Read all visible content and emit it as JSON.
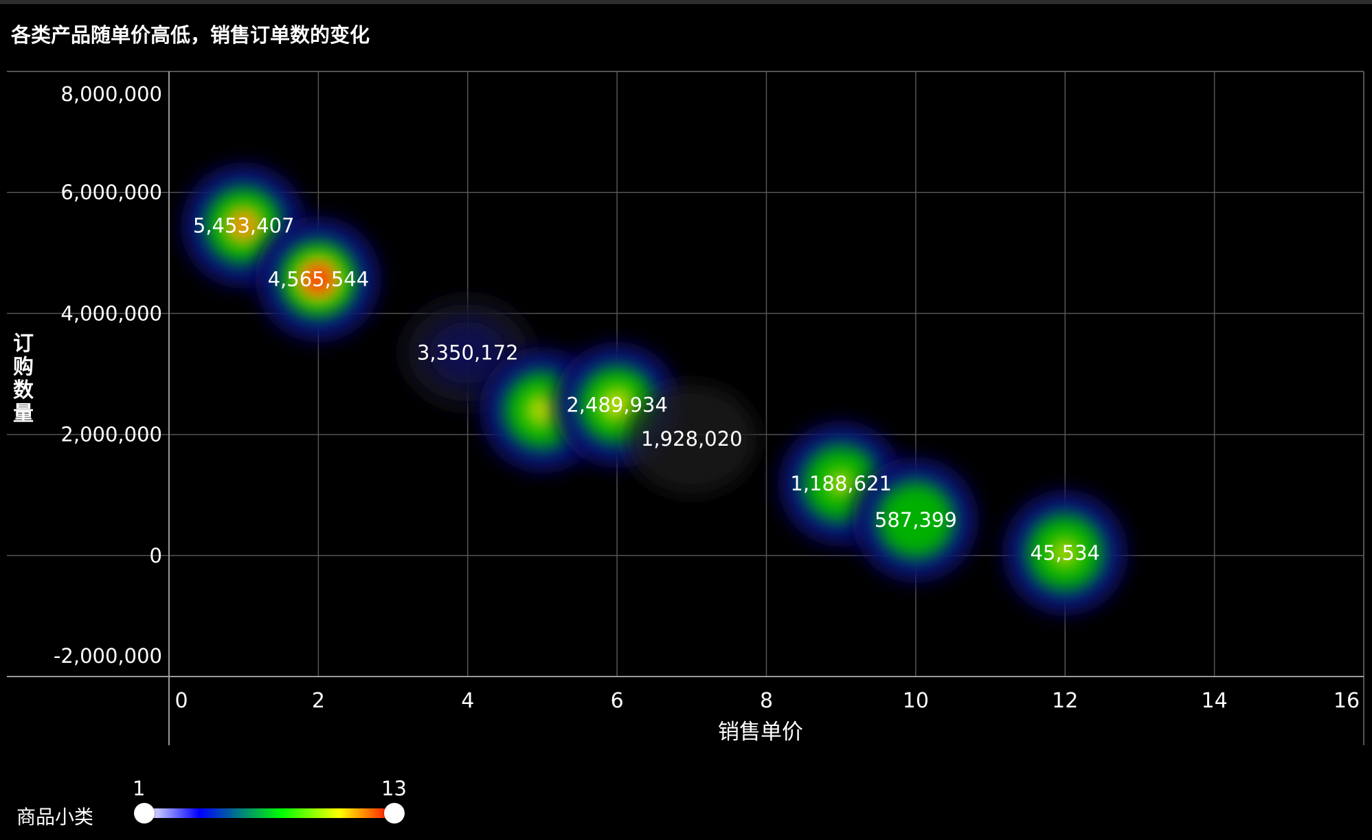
{
  "title": "各类产品随单价高低，销售订单数的变化",
  "colors": {
    "background": "#000000",
    "grid": "#555555",
    "axis": "#9a9a9a",
    "label": "#ffffff"
  },
  "chart_data": {
    "type": "heatmap",
    "title": "各类产品随单价高低，销售订单数的变化",
    "xlabel": "销售单价",
    "ylabel": "订购数量",
    "xlim": [
      0,
      16
    ],
    "ylim": [
      -2000000,
      8000000
    ],
    "x_ticks": [
      0,
      2,
      4,
      6,
      8,
      10,
      12,
      14,
      16
    ],
    "x_tick_labels": [
      "0",
      "2",
      "4",
      "6",
      "8",
      "10",
      "12",
      "14",
      "16"
    ],
    "y_ticks": [
      -2000000,
      0,
      2000000,
      4000000,
      6000000,
      8000000
    ],
    "y_tick_labels": [
      "-2,000,000",
      "0",
      "2,000,000",
      "4,000,000",
      "6,000,000",
      "8,000,000"
    ],
    "grid": true,
    "points": [
      {
        "x": 1,
        "y": 5453407,
        "label": "5,453,407",
        "intensity": 0.8
      },
      {
        "x": 2,
        "y": 4565544,
        "label": "4,565,544",
        "intensity": 1.0
      },
      {
        "x": 4,
        "y": 3350172,
        "label": "3,350,172",
        "intensity": 0.15
      },
      {
        "x": 5,
        "y": 2400000,
        "label": "",
        "intensity": 0.7
      },
      {
        "x": 6,
        "y": 2489934,
        "label": "2,489,934",
        "intensity": 0.75
      },
      {
        "x": 7,
        "y": 1928020,
        "label": "1,928,020",
        "intensity": 0.05
      },
      {
        "x": 9,
        "y": 1188621,
        "label": "1,188,621",
        "intensity": 0.55
      },
      {
        "x": 10,
        "y": 587399,
        "label": "587,399",
        "intensity": 0.3
      },
      {
        "x": 12,
        "y": 45534,
        "label": "45,534",
        "intensity": 0.6
      }
    ],
    "visual_map": {
      "label": "商品小类",
      "min": 1,
      "max": 13,
      "min_label": "1",
      "max_label": "13",
      "colors": [
        "#ffffff",
        "#0000ff",
        "#00ff00",
        "#ffff00",
        "#ff0000"
      ]
    }
  }
}
